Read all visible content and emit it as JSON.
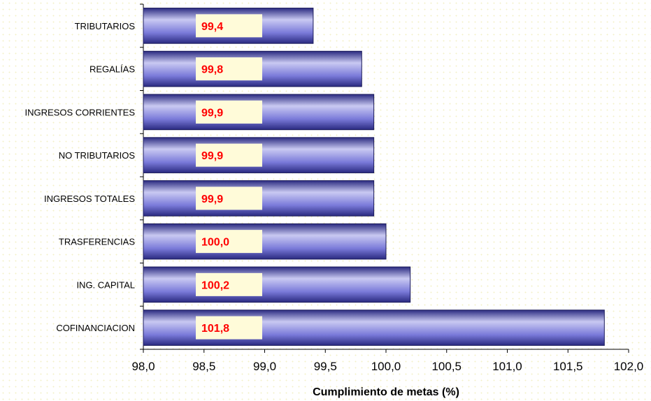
{
  "chart_data": {
    "type": "bar",
    "orientation": "horizontal",
    "categories": [
      "TRIBUTARIOS",
      "REGALÍAS",
      "INGRESOS CORRIENTES",
      "NO TRIBUTARIOS",
      "INGRESOS TOTALES",
      "TRASFERENCIAS",
      "ING. CAPITAL",
      "COFINANCIACION"
    ],
    "values": [
      99.4,
      99.8,
      99.9,
      99.9,
      99.9,
      100.0,
      100.2,
      101.8
    ],
    "data_labels": [
      "99,4",
      "99,8",
      "99,9",
      "99,9",
      "99,9",
      "100,0",
      "100,2",
      "101,8"
    ],
    "xlabel": "Cumplimiento de metas (%)",
    "xlim": [
      98.0,
      102.0
    ],
    "xticks": [
      "98,0",
      "98,5",
      "99,0",
      "99,5",
      "100,0",
      "100,5",
      "101,0",
      "101,5",
      "102,0"
    ],
    "grid": false,
    "legend": "none",
    "colors": {
      "bar_light": "#c9c9f2",
      "bar_mid": "#7a7ad9",
      "bar_dark": "#2a2a80",
      "label_text": "#ff0000",
      "label_box": "#fffbd9"
    }
  }
}
